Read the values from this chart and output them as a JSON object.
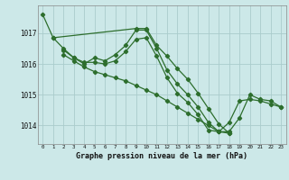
{
  "bg_color": "#cce8e8",
  "grid_color": "#aacccc",
  "line_color": "#2d6e2d",
  "title": "Graphe pression niveau de la mer (hPa)",
  "yticks": [
    1014,
    1015,
    1016,
    1017
  ],
  "ylim": [
    1013.4,
    1017.9
  ],
  "xlim": [
    -0.5,
    23.5
  ],
  "series": [
    {
      "x": [
        0,
        1,
        9,
        10,
        11,
        12,
        13,
        14,
        15,
        16,
        17,
        18
      ],
      "y": [
        1017.6,
        1016.85,
        1017.15,
        1017.15,
        1016.6,
        1016.25,
        1015.85,
        1015.5,
        1015.05,
        1014.55,
        1014.05,
        1013.75
      ]
    },
    {
      "x": [
        1,
        2,
        3,
        4,
        5,
        6,
        7,
        8,
        9,
        10,
        11,
        12,
        13,
        14,
        15,
        16,
        17,
        18
      ],
      "y": [
        1016.85,
        1016.5,
        1016.2,
        1016.0,
        1016.2,
        1016.1,
        1016.3,
        1016.6,
        1017.1,
        1017.1,
        1016.5,
        1015.8,
        1015.35,
        1015.0,
        1014.6,
        1014.1,
        1013.8,
        1013.75
      ]
    },
    {
      "x": [
        2,
        3,
        4,
        5,
        6,
        7,
        8,
        9,
        10,
        11,
        12,
        13,
        14,
        15,
        16,
        17,
        18,
        19,
        20,
        21,
        22,
        23
      ],
      "y": [
        1016.45,
        1016.2,
        1016.05,
        1016.05,
        1016.0,
        1016.1,
        1016.4,
        1016.8,
        1016.85,
        1016.25,
        1015.55,
        1015.05,
        1014.75,
        1014.35,
        1013.85,
        1013.8,
        1014.1,
        1014.8,
        1014.85,
        1014.8,
        1014.7,
        1014.6
      ]
    },
    {
      "x": [
        2,
        3,
        4,
        5,
        6,
        7,
        8,
        9,
        10,
        11,
        12,
        13,
        14,
        15,
        16,
        17,
        18,
        19,
        20,
        21,
        22,
        23
      ],
      "y": [
        1016.3,
        1016.1,
        1015.9,
        1015.75,
        1015.65,
        1015.55,
        1015.45,
        1015.3,
        1015.15,
        1015.0,
        1014.8,
        1014.6,
        1014.4,
        1014.2,
        1014.0,
        1013.8,
        1013.8,
        1014.25,
        1015.0,
        1014.85,
        1014.8,
        1014.6
      ]
    }
  ]
}
